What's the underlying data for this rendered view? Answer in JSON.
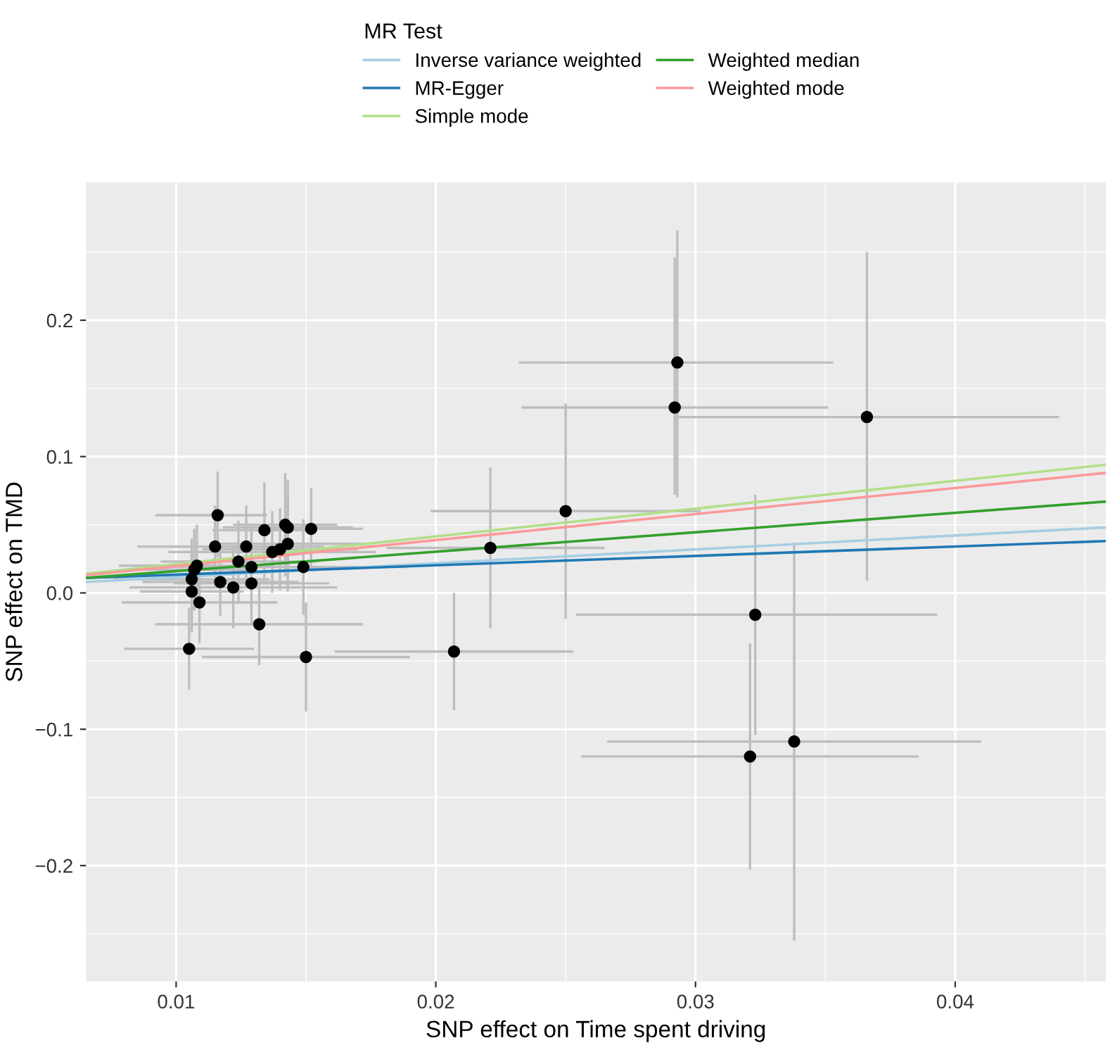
{
  "chart_data": {
    "type": "scatter",
    "xlabel": "SNP effect on Time spent driving",
    "ylabel": "SNP effect on TMD",
    "legend_title": "MR Test",
    "legend": "top",
    "grid": true,
    "xlim": [
      0.00653,
      0.0458
    ],
    "ylim": [
      -0.285,
      0.301
    ],
    "xticks": [
      0.01,
      0.02,
      0.03,
      0.04
    ],
    "yticks": [
      {
        "value": -0.2,
        "label": "−0.2"
      },
      {
        "value": -0.1,
        "label": "−0.1"
      },
      {
        "value": 0.0,
        "label": "0.0"
      },
      0.1,
      0.2
    ],
    "series": [
      {
        "type": "line",
        "name": "Inverse variance weighted",
        "color": "#a6cee3",
        "x": [
          0.00653,
          0.0458
        ],
        "values": [
          0.008,
          0.048
        ]
      },
      {
        "type": "line",
        "name": "MR-Egger",
        "color": "#1f78b4",
        "x": [
          0.00653,
          0.0458
        ],
        "values": [
          0.011,
          0.038
        ]
      },
      {
        "type": "line",
        "name": "Simple mode",
        "color": "#b2df8a",
        "x": [
          0.00653,
          0.0458
        ],
        "values": [
          0.014,
          0.094
        ]
      },
      {
        "type": "line",
        "name": "Weighted median",
        "color": "#33a02c",
        "x": [
          0.00653,
          0.0458
        ],
        "values": [
          0.011,
          0.067
        ]
      },
      {
        "type": "line",
        "name": "Weighted mode",
        "color": "#fb9a99",
        "x": [
          0.00653,
          0.0458
        ],
        "values": [
          0.013,
          0.088
        ]
      },
      {
        "color": "#000000",
        "marker": "circle",
        "x": [
          0.0293,
          0.0292,
          0.0366,
          0.025,
          0.0221,
          0.0207,
          0.0323,
          0.0338,
          0.0321,
          0.0116,
          0.0134,
          0.0142,
          0.0143,
          0.0152,
          0.0115,
          0.0127,
          0.0143,
          0.0137,
          0.014,
          0.0124,
          0.0129,
          0.0149,
          0.0108,
          0.0107,
          0.0106,
          0.0117,
          0.0122,
          0.0129,
          0.0106,
          0.0109,
          0.0132,
          0.0105,
          0.015
        ],
        "values": [
          0.169,
          0.136,
          0.129,
          0.06,
          0.033,
          -0.043,
          -0.016,
          -0.109,
          -0.12,
          0.057,
          0.046,
          0.05,
          0.048,
          0.047,
          0.034,
          0.034,
          0.036,
          0.03,
          0.032,
          0.023,
          0.019,
          0.019,
          0.02,
          0.017,
          0.01,
          0.008,
          0.004,
          0.007,
          0.001,
          -0.007,
          -0.023,
          -0.041,
          -0.047
        ],
        "xerrors": [
          [
            0.0232,
            0.0353
          ],
          [
            0.0233,
            0.0351
          ],
          [
            0.0292,
            0.044
          ],
          [
            0.0198,
            0.0302
          ],
          [
            0.0181,
            0.0265
          ],
          [
            0.0161,
            0.0253
          ],
          [
            0.0254,
            0.0393
          ],
          [
            0.0266,
            0.041
          ],
          [
            0.0256,
            0.0386
          ],
          [
            0.0092,
            0.0135
          ],
          0.002,
          0.002,
          0.0025,
          0.002,
          0.003,
          0.003,
          0.003,
          0.004,
          0.003,
          0.003,
          0.004,
          0.004,
          0.003,
          0.002,
          0.003,
          0.003,
          0.004,
          0.003,
          0.002,
          0.003,
          0.004,
          0.0025,
          0.004
        ],
        "errors": [
          [
            0.07,
            0.266
          ],
          [
            0.072,
            0.246
          ],
          [
            0.009,
            0.25
          ],
          [
            -0.019,
            0.139
          ],
          [
            -0.026,
            0.092
          ],
          [
            -0.086,
            0.0
          ],
          [
            -0.104,
            0.072
          ],
          [
            -0.255,
            0.037
          ],
          [
            -0.203,
            -0.037
          ],
          [
            0.026,
            0.089
          ],
          0.035,
          0.038,
          0.035,
          0.03,
          0.03,
          0.03,
          0.035,
          0.03,
          0.03,
          0.03,
          0.03,
          0.035,
          0.03,
          0.03,
          0.03,
          0.025,
          0.03,
          0.03,
          0.03,
          0.03,
          0.03,
          0.03,
          0.04
        ]
      }
    ]
  }
}
